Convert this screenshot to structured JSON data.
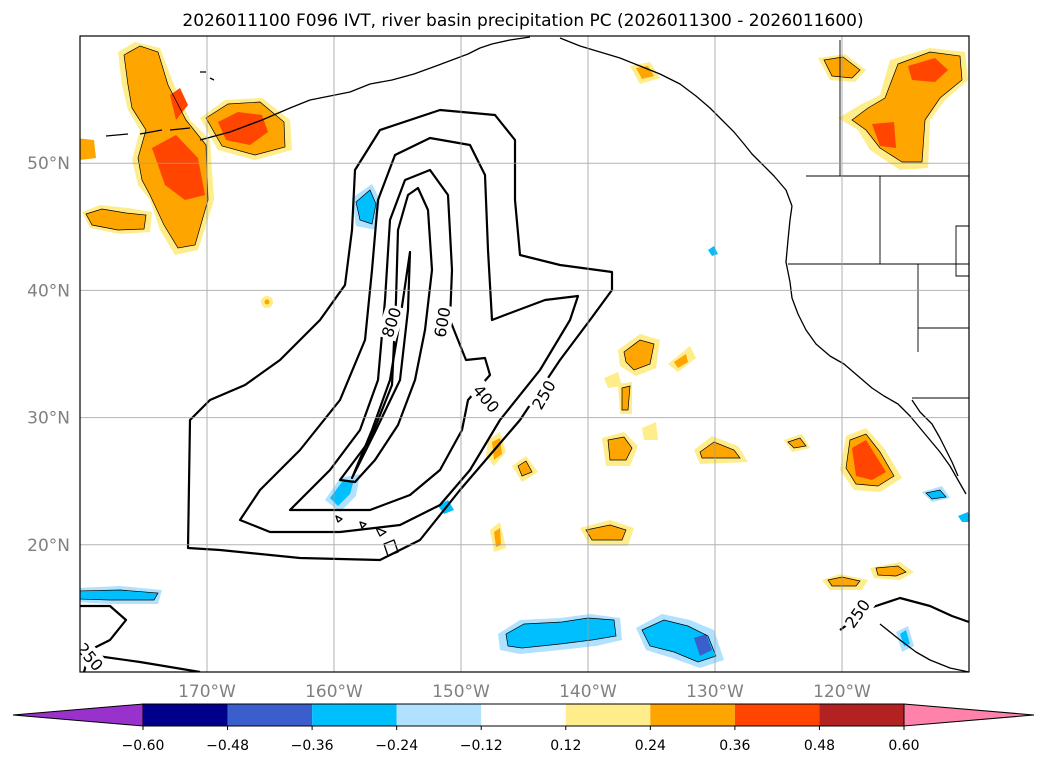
{
  "chart_data": {
    "type": "map",
    "title": "2026011100 F096 IVT, river basin precipitation PC (2026011300 - 2026011600)",
    "map_extent": {
      "lon": [
        -180,
        -110
      ],
      "lat": [
        10,
        60
      ]
    },
    "gridlines": true,
    "xticks": [
      {
        "lon": -170,
        "label": "170°W"
      },
      {
        "lon": -160,
        "label": "160°W"
      },
      {
        "lon": -150,
        "label": "150°W"
      },
      {
        "lon": -140,
        "label": "140°W"
      },
      {
        "lon": -130,
        "label": "130°W"
      },
      {
        "lon": -120,
        "label": "120°W"
      }
    ],
    "yticks": [
      {
        "lat": 50,
        "label": "50°N"
      },
      {
        "lat": 40,
        "label": "40°N"
      },
      {
        "lat": 30,
        "label": "30°N"
      },
      {
        "lat": 20,
        "label": "20°N"
      }
    ],
    "ivt_contour_labels": [
      {
        "text": "800",
        "lon": -155.5,
        "lat": 37.5,
        "angle": -72
      },
      {
        "text": "600",
        "lon": -151.5,
        "lat": 37.5,
        "angle": -80
      },
      {
        "text": "400",
        "lon": -148,
        "lat": 31.5,
        "angle": 50
      },
      {
        "text": "250",
        "lon": -143.5,
        "lat": 31.8,
        "angle": -60
      },
      {
        "text": "250",
        "lon": -179.2,
        "lat": 11.2,
        "angle": 50
      },
      {
        "text": "250",
        "lon": -118.8,
        "lat": 14.6,
        "angle": -55
      }
    ],
    "colorbar": {
      "levels": [
        -0.6,
        -0.48,
        -0.36,
        -0.24,
        -0.12,
        0.12,
        0.24,
        0.36,
        0.48,
        0.6
      ],
      "tick_labels": [
        "−0.60",
        "−0.48",
        "−0.36",
        "−0.24",
        "−0.12",
        "0.12",
        "0.24",
        "0.36",
        "0.48",
        "0.60"
      ],
      "colors": [
        "#9932cc",
        "#00008b",
        "#3a5fcd",
        "#00bfff",
        "#b0e2ff",
        "#ffffff",
        "#ffec8b",
        "#ffa500",
        "#ff4500",
        "#b22222",
        "#ff82ab"
      ],
      "extend": "both"
    }
  }
}
